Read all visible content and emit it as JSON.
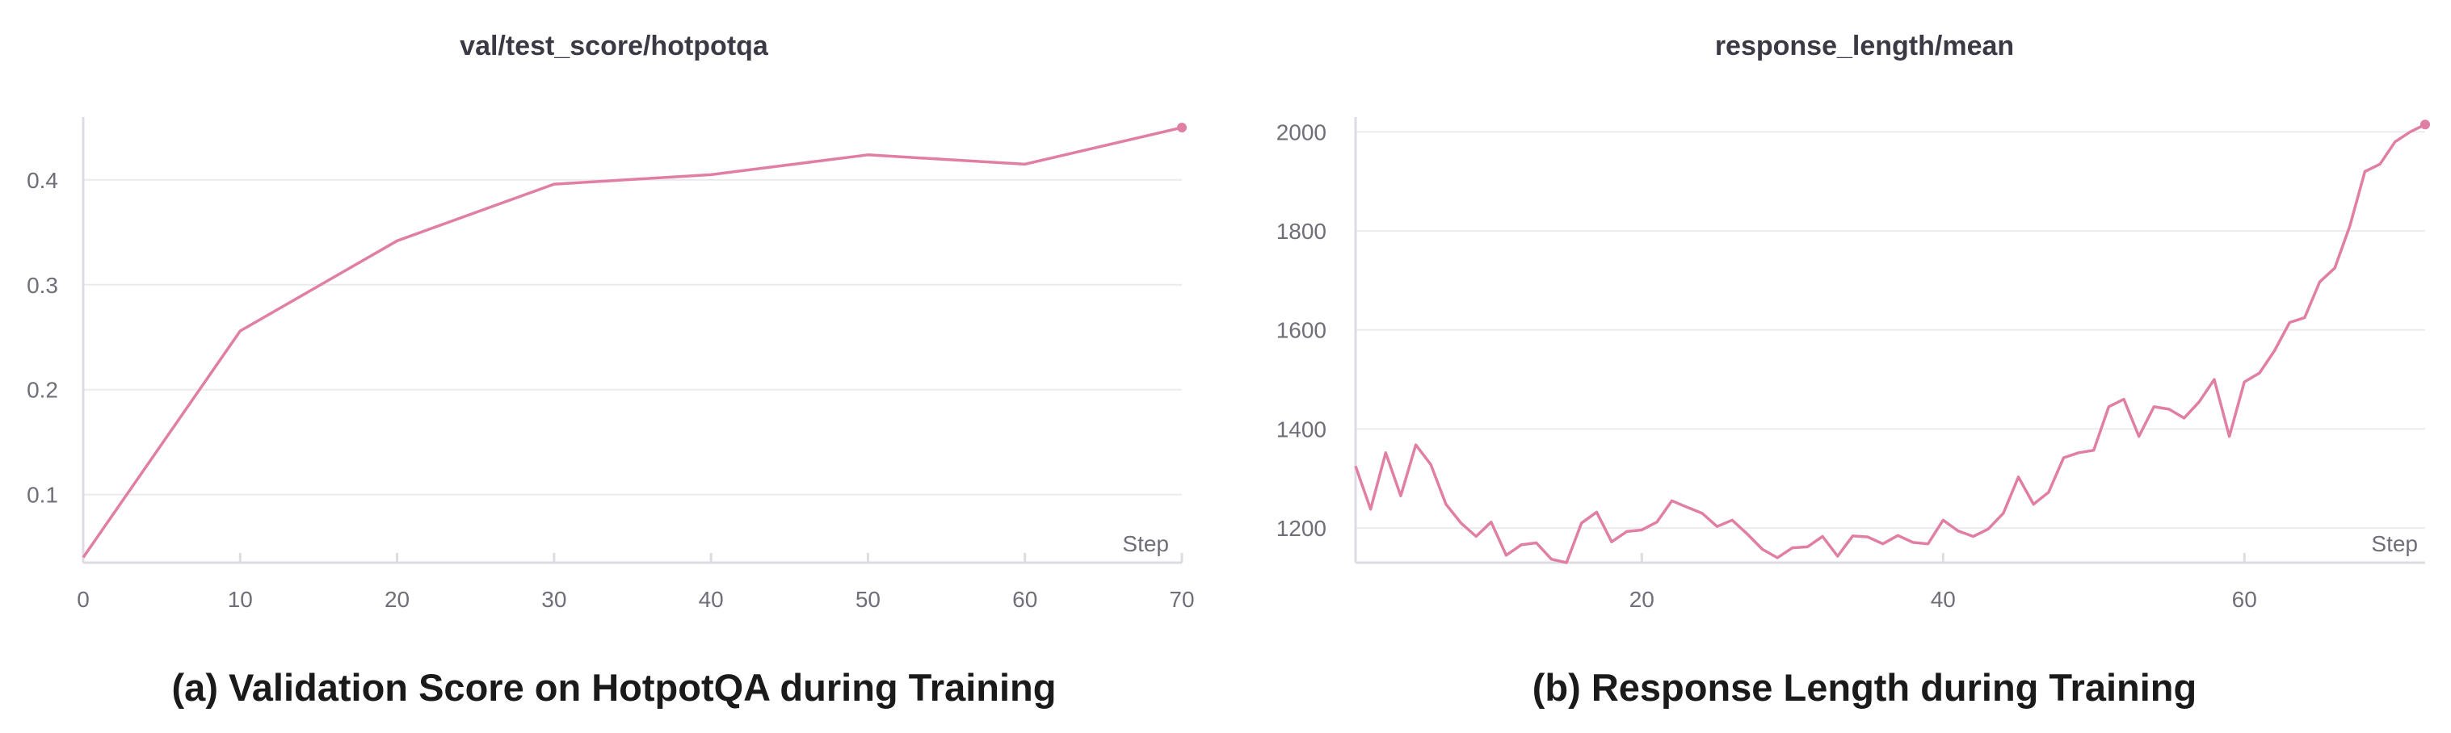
{
  "colors": {
    "line": "#e07fa3",
    "axis": "#dcdce2",
    "grid": "#ebebef",
    "text": "#6f6f7a"
  },
  "chart_data": [
    {
      "type": "line",
      "title": "val/test_score/hotpotqa",
      "caption": "(a) Validation Score on HotpotQA during Training",
      "xlabel": "Step",
      "ylabel": "",
      "xlim": [
        0,
        70
      ],
      "ylim": [
        0.035,
        0.46
      ],
      "xticks": [
        0,
        10,
        20,
        30,
        40,
        50,
        60,
        70
      ],
      "yticks": [
        0.1,
        0.2,
        0.3,
        0.4
      ],
      "x": [
        0,
        10,
        20,
        30,
        40,
        50,
        60,
        70
      ],
      "values": [
        0.04,
        0.256,
        0.342,
        0.396,
        0.405,
        0.424,
        0.415,
        0.45
      ],
      "grid": true
    },
    {
      "type": "line",
      "title": "response_length/mean",
      "caption": "(b) Response Length during Training",
      "xlabel": "Step",
      "ylabel": "",
      "xlim": [
        1,
        72
      ],
      "ylim": [
        1130,
        2030
      ],
      "xticks": [
        20,
        40,
        60
      ],
      "yticks": [
        1200,
        1400,
        1600,
        1800,
        2000
      ],
      "x": [
        1,
        2,
        3,
        4,
        5,
        6,
        7,
        8,
        9,
        10,
        11,
        12,
        13,
        14,
        15,
        16,
        17,
        18,
        19,
        20,
        21,
        22,
        23,
        24,
        25,
        26,
        27,
        28,
        29,
        30,
        31,
        32,
        33,
        34,
        35,
        36,
        37,
        38,
        39,
        40,
        41,
        42,
        43,
        44,
        45,
        46,
        47,
        48,
        49,
        50,
        51,
        52,
        53,
        54,
        55,
        56,
        57,
        58,
        59,
        60,
        61,
        62,
        63,
        64,
        65,
        66,
        67,
        68,
        69,
        70,
        71,
        72
      ],
      "values": [
        1325,
        1238,
        1352,
        1265,
        1368,
        1328,
        1248,
        1210,
        1183,
        1212,
        1145,
        1166,
        1170,
        1137,
        1130,
        1210,
        1232,
        1172,
        1193,
        1196,
        1212,
        1255,
        1242,
        1230,
        1203,
        1216,
        1188,
        1157,
        1140,
        1160,
        1162,
        1183,
        1143,
        1184,
        1182,
        1168,
        1185,
        1171,
        1168,
        1216,
        1194,
        1183,
        1198,
        1230,
        1303,
        1248,
        1272,
        1342,
        1352,
        1357,
        1445,
        1460,
        1385,
        1445,
        1440,
        1422,
        1455,
        1500,
        1385,
        1495,
        1513,
        1558,
        1615,
        1625,
        1697,
        1725,
        1810,
        1920,
        1935,
        1980,
        2000,
        2015
      ],
      "grid": true
    }
  ]
}
